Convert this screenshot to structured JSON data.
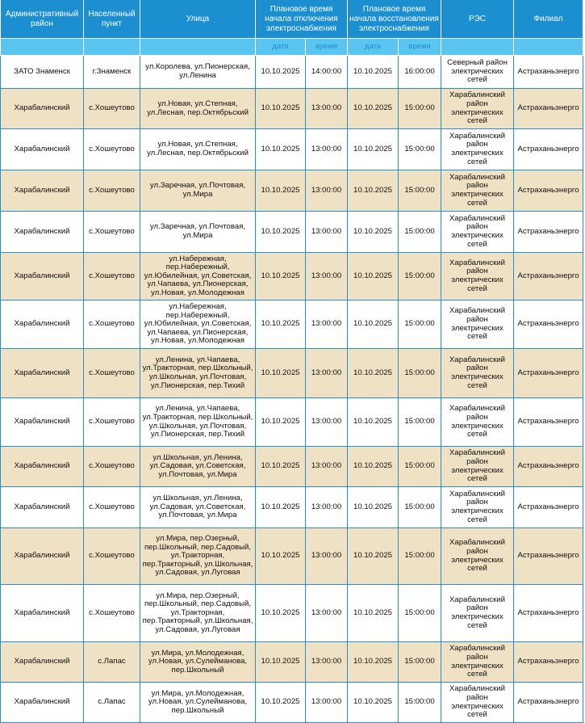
{
  "header": {
    "district": "Административный район",
    "locality": "Населенный пункт",
    "street": "Улица",
    "off_time": "Плановое время начала отключения электроснабжения",
    "restore_time": "Плановое время начала восстановления электроснабжения",
    "res": "РЭС",
    "branch": "Филиал",
    "sub_date": "дата",
    "sub_time": "время"
  },
  "colors": {
    "header": "#1b8fd0",
    "subheader": "#5ac5f1",
    "alt_row": "#efe1c4",
    "border": "#2a8fc9"
  },
  "rows": [
    {
      "district": "ЗАТО Знаменск",
      "locality": "г.Знаменск",
      "street": "ул.Королева, ул.Пионерская, ул.Ленина",
      "off_date": "10.10.2025",
      "off_time": "14:00:00",
      "on_date": "10.10.2025",
      "on_time": "16:00:00",
      "res": "Северный район электрических сетей",
      "branch": "Астраханьэнерго"
    },
    {
      "district": "Харабалинский",
      "locality": "с.Хошеутово",
      "street": "ул.Новая, ул.Степная, ул.Лесная, пер.Октябрьский",
      "off_date": "10.10.2025",
      "off_time": "13:00:00",
      "on_date": "10.10.2025",
      "on_time": "15:00:00",
      "res": "Харабалинский район электрических сетей",
      "branch": "Астраханьэнерго"
    },
    {
      "district": "Харабалинский",
      "locality": "с.Хошеутово",
      "street": "ул.Новая, ул.Степная, ул.Лесная, пер.Октябрьский",
      "off_date": "10.10.2025",
      "off_time": "13:00:00",
      "on_date": "10.10.2025",
      "on_time": "15:00:00",
      "res": "Харабалинский район электрических сетей",
      "branch": "Астраханьэнерго"
    },
    {
      "district": "Харабалинский",
      "locality": "с.Хошеутово",
      "street": "ул.Заречная, ул.Почтовая, ул.Мира",
      "off_date": "10.10.2025",
      "off_time": "13:00:00",
      "on_date": "10.10.2025",
      "on_time": "15:00:00",
      "res": "Харабалинский район электрических сетей",
      "branch": "Астраханьэнерго"
    },
    {
      "district": "Харабалинский",
      "locality": "с.Хошеутово",
      "street": "ул.Заречная, ул.Почтовая, ул.Мира",
      "off_date": "10.10.2025",
      "off_time": "13:00:00",
      "on_date": "10.10.2025",
      "on_time": "15:00:00",
      "res": "Харабалинский район электрических сетей",
      "branch": "Астраханьэнерго"
    },
    {
      "district": "Харабалинский",
      "locality": "с.Хошеутово",
      "street": "ул.Набережная, пер.Набережный, ул.Юбилейная, ул.Советская, ул.Чапаева, ул.Пионерская, ул.Новая, ул.Молодежная",
      "off_date": "10.10.2025",
      "off_time": "13:00:00",
      "on_date": "10.10.2025",
      "on_time": "15:00:00",
      "res": "Харабалинский район электрических сетей",
      "branch": "Астраханьэнерго"
    },
    {
      "district": "Харабалинский",
      "locality": "с.Хошеутово",
      "street": "ул.Набережная, пер.Набережный, ул.Юбилейная, ул.Советская, ул.Чапаева, ул.Пионерская, ул.Новая, ул.Молодежная",
      "off_date": "10.10.2025",
      "off_time": "13:00:00",
      "on_date": "10.10.2025",
      "on_time": "15:00:00",
      "res": "Харабалинский район электрических сетей",
      "branch": "Астраханьэнерго"
    },
    {
      "district": "Харабалинский",
      "locality": "с.Хошеутово",
      "street": "ул.Ленина, ул.Чапаева, ул.Тракторная, пер.Школьный, ул.Школьная, ул.Почтовая, ул.Пионерская, пер.Тихий",
      "off_date": "10.10.2025",
      "off_time": "13:00:00",
      "on_date": "10.10.2025",
      "on_time": "15:00:00",
      "res": "Харабалинский район электрических сетей",
      "branch": "Астраханьэнерго"
    },
    {
      "district": "Харабалинский",
      "locality": "с.Хошеутово",
      "street": "ул.Ленина, ул.Чапаева, ул.Тракторная, пер.Школьный, ул.Школьная, ул.Почтовая, ул.Пионерская, пер.Тихий",
      "off_date": "10.10.2025",
      "off_time": "13:00:00",
      "on_date": "10.10.2025",
      "on_time": "15:00:00",
      "res": "Харабалинский район электрических сетей",
      "branch": "Астраханьэнерго"
    },
    {
      "district": "Харабалинский",
      "locality": "с.Хошеутово",
      "street": "ул.Школьная, ул.Ленина, ул.Садовая, ул.Советская, ул.Почтовая, ул.Мира",
      "off_date": "10.10.2025",
      "off_time": "13:00:00",
      "on_date": "10.10.2025",
      "on_time": "15:00:00",
      "res": "Харабалинский район электрических сетей",
      "branch": "Астраханьэнерго"
    },
    {
      "district": "Харабалинский",
      "locality": "с.Хошеутово",
      "street": "ул.Школьная, ул.Ленина, ул.Садовая, ул.Советская, ул.Почтовая, ул.Мира",
      "off_date": "10.10.2025",
      "off_time": "13:00:00",
      "on_date": "10.10.2025",
      "on_time": "15:00:00",
      "res": "Харабалинский район электрических сетей",
      "branch": "Астраханьэнерго"
    },
    {
      "district": "Харабалинский",
      "locality": "с.Хошеутово",
      "street": "ул.Мира, пер.Озерный, пер.Школьный, пер.Садовый, ул.Тракторная, пер.Тракторный, ул.Школьная, ул.Садовая, ул.Луговая",
      "off_date": "10.10.2025",
      "off_time": "13:00:00",
      "on_date": "10.10.2025",
      "on_time": "15:00:00",
      "res": "Харабалинский район электрических сетей",
      "branch": "Астраханьэнерго"
    },
    {
      "district": "Харабалинский",
      "locality": "с.Хошеутово",
      "street": "ул.Мира, пер.Озерный, пер.Школьный, пер.Садовый, ул.Тракторная, пер.Тракторный, ул.Школьная, ул.Садовая, ул.Луговая",
      "off_date": "10.10.2025",
      "off_time": "13:00:00",
      "on_date": "10.10.2025",
      "on_time": "15:00:00",
      "res": "Харабалинский район электрических сетей",
      "branch": "Астраханьэнерго"
    },
    {
      "district": "Харабалинский",
      "locality": "с.Лапас",
      "street": "ул.Мира, ул.Молодежная, ул.Новая, ул.Сулейманова, пер.Школьный",
      "off_date": "10.10.2025",
      "off_time": "13:00:00",
      "on_date": "10.10.2025",
      "on_time": "15:00:00",
      "res": "Харабалинский район электрических сетей",
      "branch": "Астраханьэнерго"
    },
    {
      "district": "Харабалинский",
      "locality": "с.Лапас",
      "street": "ул.Мира, ул.Молодежная, ул.Новая, ул.Сулейманова, пер.Школьный",
      "off_date": "10.10.2025",
      "off_time": "13:00:00",
      "on_date": "10.10.2025",
      "on_time": "15:00:00",
      "res": "Харабалинский район электрических сетей",
      "branch": "Астраханьэнерго"
    }
  ]
}
